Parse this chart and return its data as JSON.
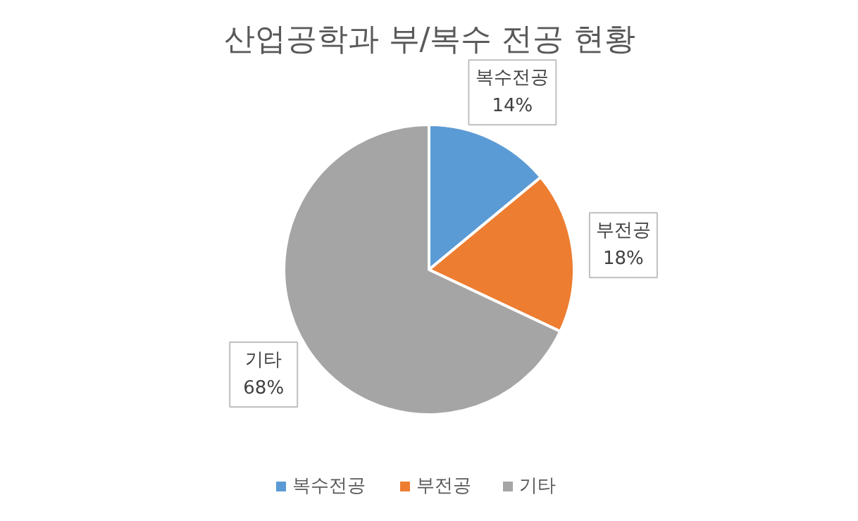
{
  "chart_data": {
    "type": "pie",
    "title": "산업공학과 부/복수 전공 현황",
    "categories": [
      "복수전공",
      "부전공",
      "기타"
    ],
    "values": [
      14,
      18,
      68
    ],
    "value_labels": [
      "14%",
      "18%",
      "68%"
    ],
    "colors": [
      "#5b9bd5",
      "#ed7d31",
      "#a5a5a5"
    ],
    "legend": "bottom"
  }
}
